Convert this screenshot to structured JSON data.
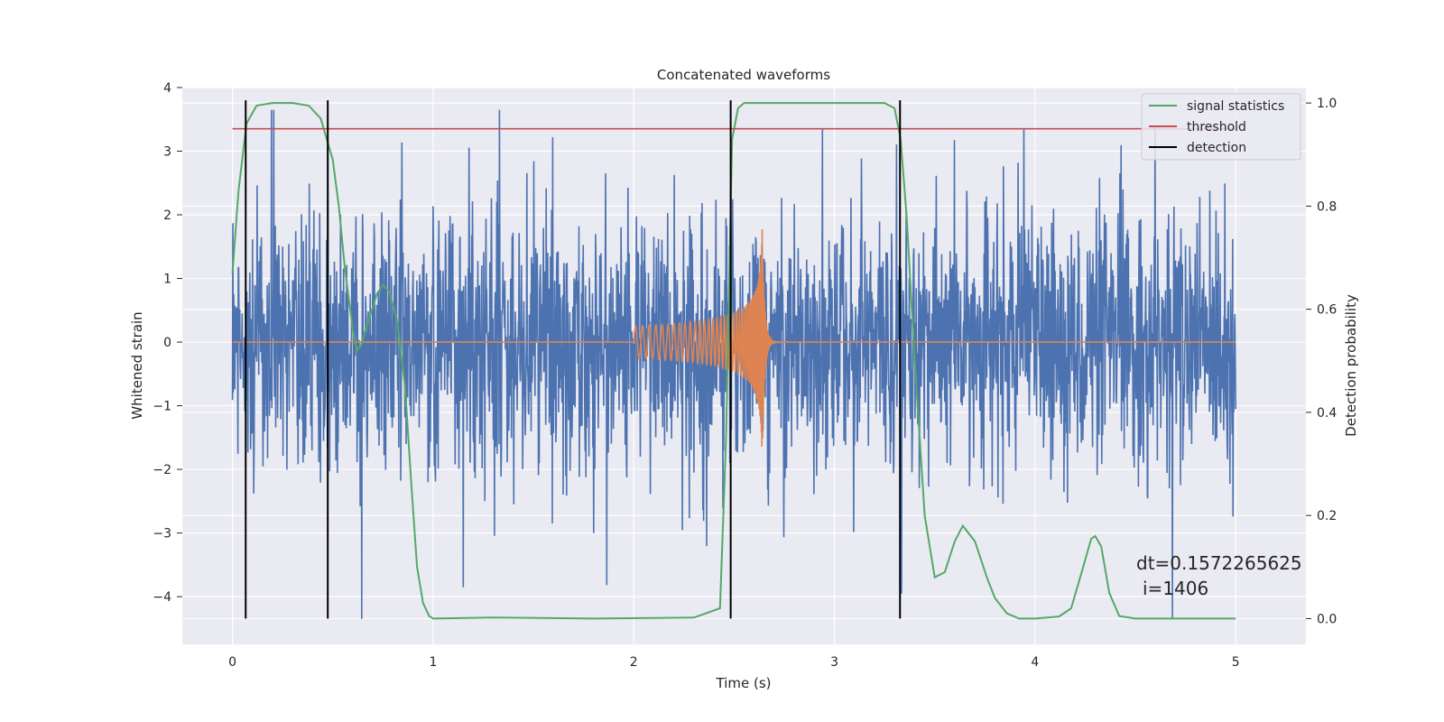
{
  "chart_data": {
    "type": "line",
    "title": "Concatenated waveforms",
    "xlabel": "Time (s)",
    "ylabel": "Whitened strain",
    "y2label": "Detection probability",
    "xlim": [
      -0.25,
      5.35
    ],
    "ylim": [
      -4.75,
      4.0
    ],
    "y2lim": [
      -0.05,
      1.03
    ],
    "x_ticks": [
      0,
      1,
      2,
      3,
      4,
      5
    ],
    "y_ticks": [
      -4,
      -3,
      -2,
      -1,
      0,
      1,
      2,
      3,
      4
    ],
    "y2_ticks": [
      0.0,
      0.2,
      0.4,
      0.6,
      0.8,
      1.0
    ],
    "x_tick_labels": [
      "0",
      "1",
      "2",
      "3",
      "4",
      "5"
    ],
    "y_tick_labels": [
      "−4",
      "−3",
      "−2",
      "−1",
      "0",
      "1",
      "2",
      "3",
      "4"
    ],
    "y2_tick_labels": [
      "0.0",
      "0.2",
      "0.4",
      "0.6",
      "0.8",
      "1.0"
    ],
    "grid": true,
    "legend_position": "top-right",
    "legend": [
      "signal statistics",
      "threshold",
      "detection"
    ],
    "series": [
      {
        "role": "strain-noise",
        "color": "#4c72b0",
        "x_range": [
          0,
          5
        ],
        "typical_amplitude": 1.6,
        "peak_max": 3.65,
        "peak_min": -4.35
      },
      {
        "role": "chirp",
        "color": "#dd8452",
        "start": 2.0,
        "merger": 2.64,
        "start_amplitude": 0.25,
        "peak_max": 2.25,
        "peak_min": -1.8
      },
      {
        "name": "signal statistics",
        "color": "#55a868",
        "axis": "right",
        "x": [
          0.0,
          0.03,
          0.07,
          0.12,
          0.2,
          0.3,
          0.38,
          0.44,
          0.5,
          0.53,
          0.56,
          0.6,
          0.62,
          0.64,
          0.68,
          0.72,
          0.75,
          0.78,
          0.82,
          0.86,
          0.89,
          0.92,
          0.95,
          0.98,
          1.0,
          1.3,
          1.8,
          2.3,
          2.43,
          2.46,
          2.49,
          2.52,
          2.55,
          2.6,
          3.25,
          3.3,
          3.33,
          3.36,
          3.4,
          3.45,
          3.5,
          3.55,
          3.6,
          3.64,
          3.7,
          3.76,
          3.8,
          3.86,
          3.92,
          4.0,
          4.12,
          4.18,
          4.24,
          4.28,
          4.3,
          4.33,
          4.37,
          4.42,
          4.5,
          5.0
        ],
        "y": [
          0.67,
          0.83,
          0.96,
          0.995,
          1.0,
          1.0,
          0.995,
          0.97,
          0.89,
          0.8,
          0.68,
          0.56,
          0.52,
          0.53,
          0.58,
          0.63,
          0.647,
          0.635,
          0.58,
          0.45,
          0.27,
          0.1,
          0.03,
          0.005,
          0.0,
          0.002,
          0.0,
          0.002,
          0.02,
          0.35,
          0.93,
          0.99,
          1.0,
          1.0,
          1.0,
          0.99,
          0.93,
          0.78,
          0.5,
          0.2,
          0.08,
          0.09,
          0.15,
          0.18,
          0.15,
          0.08,
          0.04,
          0.01,
          0.0,
          0.0,
          0.004,
          0.02,
          0.1,
          0.155,
          0.16,
          0.14,
          0.05,
          0.005,
          0.0,
          0.0
        ]
      },
      {
        "name": "threshold",
        "color": "#c44e52",
        "axis": "right",
        "x": [
          0,
          5
        ],
        "y": [
          0.95,
          0.95
        ]
      },
      {
        "name": "detection",
        "color": "#000000",
        "axis": "right",
        "type": "vlines",
        "x": [
          0.066,
          0.475,
          2.483,
          3.327
        ],
        "y_range": [
          0.0,
          1.0
        ]
      }
    ],
    "annotations": [
      "dt=0.1572265625",
      "i=1406"
    ]
  }
}
